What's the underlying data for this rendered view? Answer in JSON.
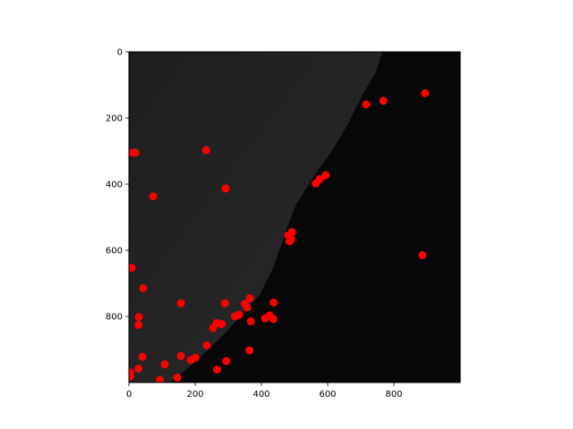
{
  "chart_data": {
    "type": "scatter",
    "title": "",
    "xlabel": "",
    "ylabel": "",
    "xlim": [
      0,
      1000
    ],
    "ylim": [
      1000,
      0
    ],
    "y_axis_inverted": true,
    "grid": false,
    "legend": "none",
    "background": "grayscale image (dark cell/tissue edge on left, black on right)",
    "x_ticks": [
      0,
      200,
      400,
      600,
      800
    ],
    "y_ticks": [
      0,
      200,
      400,
      600,
      800
    ],
    "marker_color": "#ff0000",
    "series": [
      {
        "points": [
          [
            894,
            125
          ],
          [
            768,
            148
          ],
          [
            716,
            159
          ],
          [
            12,
            305
          ],
          [
            20,
            305
          ],
          [
            233,
            297
          ],
          [
            594,
            373
          ],
          [
            576,
            385
          ],
          [
            564,
            398
          ],
          [
            292,
            413
          ],
          [
            73,
            437
          ],
          [
            492,
            545
          ],
          [
            481,
            555
          ],
          [
            490,
            567
          ],
          [
            485,
            573
          ],
          [
            886,
            615
          ],
          [
            8,
            653
          ],
          [
            43,
            715
          ],
          [
            365,
            745
          ],
          [
            437,
            758
          ],
          [
            290,
            760
          ],
          [
            157,
            760
          ],
          [
            350,
            762
          ],
          [
            357,
            773
          ],
          [
            332,
            795
          ],
          [
            425,
            797
          ],
          [
            320,
            800
          ],
          [
            30,
            802
          ],
          [
            411,
            806
          ],
          [
            436,
            808
          ],
          [
            368,
            815
          ],
          [
            265,
            820
          ],
          [
            280,
            823
          ],
          [
            29,
            826
          ],
          [
            254,
            835
          ],
          [
            235,
            888
          ],
          [
            364,
            903
          ],
          [
            157,
            920
          ],
          [
            41,
            922
          ],
          [
            201,
            925
          ],
          [
            187,
            932
          ],
          [
            294,
            935
          ],
          [
            108,
            945
          ],
          [
            29,
            958
          ],
          [
            266,
            961
          ],
          [
            4,
            970
          ],
          [
            3,
            982
          ],
          [
            146,
            985
          ],
          [
            94,
            992
          ]
        ]
      }
    ]
  }
}
